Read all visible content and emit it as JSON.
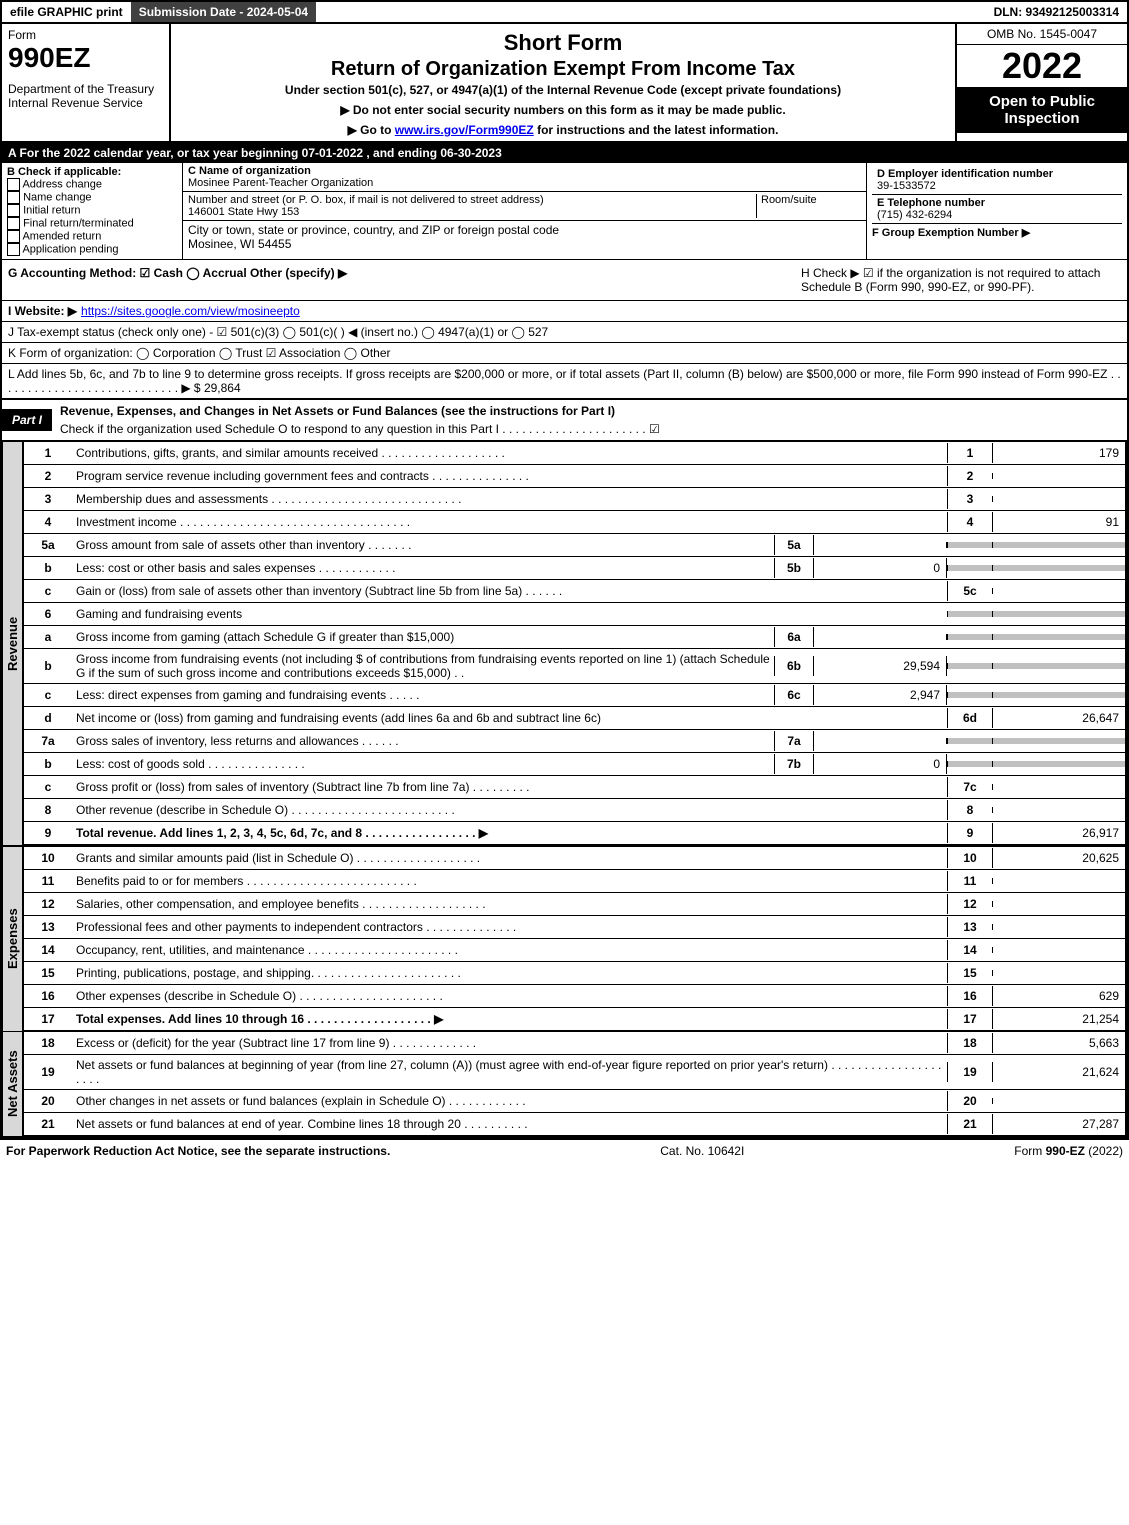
{
  "topbar": {
    "efile": "efile GRAPHIC print",
    "submission": "Submission Date - 2024-05-04",
    "dln": "DLN: 93492125003314"
  },
  "header": {
    "form_word": "Form",
    "form_num": "990EZ",
    "dept": "Department of the Treasury\nInternal Revenue Service",
    "title1": "Short Form",
    "title2": "Return of Organization Exempt From Income Tax",
    "subtitle": "Under section 501(c), 527, or 4947(a)(1) of the Internal Revenue Code (except private foundations)",
    "note1": "▶ Do not enter social security numbers on this form as it may be made public.",
    "note2_pre": "▶ Go to ",
    "note2_link": "www.irs.gov/Form990EZ",
    "note2_post": " for instructions and the latest information.",
    "omb": "OMB No. 1545-0047",
    "year": "2022",
    "open": "Open to Public Inspection"
  },
  "A": "A  For the 2022 calendar year, or tax year beginning 07-01-2022 , and ending 06-30-2023",
  "B": {
    "label": "B  Check if applicable:",
    "opts": [
      "Address change",
      "Name change",
      "Initial return",
      "Final return/terminated",
      "Amended return",
      "Application pending"
    ]
  },
  "C": {
    "label": "C Name of organization",
    "name": "Mosinee Parent-Teacher Organization",
    "street_label": "Number and street (or P. O. box, if mail is not delivered to street address)",
    "room_label": "Room/suite",
    "street": "146001 State Hwy 153",
    "city_label": "City or town, state or province, country, and ZIP or foreign postal code",
    "city": "Mosinee, WI  54455"
  },
  "D": {
    "label": "D Employer identification number",
    "val": "39-1533572"
  },
  "E": {
    "label": "E Telephone number",
    "val": "(715) 432-6294"
  },
  "F": {
    "label": "F Group Exemption Number   ▶"
  },
  "G": "G Accounting Method:   ☑ Cash   ◯ Accrual   Other (specify) ▶",
  "H": "H   Check ▶  ☑  if the organization is not required to attach Schedule B (Form 990, 990-EZ, or 990-PF).",
  "I_label": "I Website: ▶",
  "I_link": "https://sites.google.com/view/mosineepto",
  "J": "J Tax-exempt status (check only one) -  ☑ 501(c)(3)  ◯ 501(c)(  ) ◀ (insert no.)  ◯ 4947(a)(1) or  ◯ 527",
  "K": "K Form of organization:   ◯ Corporation   ◯ Trust   ☑ Association   ◯ Other",
  "L": "L Add lines 5b, 6c, and 7b to line 9 to determine gross receipts. If gross receipts are $200,000 or more, or if total assets (Part II, column (B) below) are $500,000 or more, file Form 990 instead of Form 990-EZ  .  .  .  .  .  .  .  .  .  .  .  .  .  .  .  .  .  .  .  .  .  .  .  .  .  .  .  .  ▶ $ 29,864",
  "part1": {
    "label": "Part I",
    "title": "Revenue, Expenses, and Changes in Net Assets or Fund Balances (see the instructions for Part I)",
    "check": "Check if the organization used Schedule O to respond to any question in this Part I  .  .  .  .  .  .  .  .  .  .  .  .  .  .  .  .  .  .  .  .  .  .  ☑"
  },
  "side_labels": {
    "revenue": "Revenue",
    "expenses": "Expenses",
    "netassets": "Net Assets"
  },
  "lines": {
    "1": {
      "n": "1",
      "d": "Contributions, gifts, grants, and similar amounts received  .  .  .  .  .  .  .  .  .  .  .  .  .  .  .  .  .  .  .",
      "c": "1",
      "v": "179"
    },
    "2": {
      "n": "2",
      "d": "Program service revenue including government fees and contracts  .  .  .  .  .  .  .  .  .  .  .  .  .  .  .",
      "c": "2",
      "v": ""
    },
    "3": {
      "n": "3",
      "d": "Membership dues and assessments  .  .  .  .  .  .  .  .  .  .  .  .  .  .  .  .  .  .  .  .  .  .  .  .  .  .  .  .  .",
      "c": "3",
      "v": ""
    },
    "4": {
      "n": "4",
      "d": "Investment income  .  .  .  .  .  .  .  .  .  .  .  .  .  .  .  .  .  .  .  .  .  .  .  .  .  .  .  .  .  .  .  .  .  .  .",
      "c": "4",
      "v": "91"
    },
    "5a": {
      "n": "5a",
      "d": "Gross amount from sale of assets other than inventory  .  .  .  .  .  .  .",
      "sb": "5a",
      "sv": ""
    },
    "5b": {
      "n": "b",
      "d": "Less: cost or other basis and sales expenses  .  .  .  .  .  .  .  .  .  .  .  .",
      "sb": "5b",
      "sv": "0"
    },
    "5c": {
      "n": "c",
      "d": "Gain or (loss) from sale of assets other than inventory (Subtract line 5b from line 5a)  .  .  .  .  .  .",
      "c": "5c",
      "v": ""
    },
    "6": {
      "n": "6",
      "d": "Gaming and fundraising events"
    },
    "6a": {
      "n": "a",
      "d": "Gross income from gaming (attach Schedule G if greater than $15,000)",
      "sb": "6a",
      "sv": ""
    },
    "6b": {
      "n": "b",
      "d": "Gross income from fundraising events (not including $                  of contributions from fundraising events reported on line 1) (attach Schedule G if the sum of such gross income and contributions exceeds $15,000)   .  .",
      "sb": "6b",
      "sv": "29,594"
    },
    "6c": {
      "n": "c",
      "d": "Less: direct expenses from gaming and fundraising events   .  .  .  .  .",
      "sb": "6c",
      "sv": "2,947"
    },
    "6d": {
      "n": "d",
      "d": "Net income or (loss) from gaming and fundraising events (add lines 6a and 6b and subtract line 6c)",
      "c": "6d",
      "v": "26,647"
    },
    "7a": {
      "n": "7a",
      "d": "Gross sales of inventory, less returns and allowances  .  .  .  .  .  .",
      "sb": "7a",
      "sv": ""
    },
    "7b": {
      "n": "b",
      "d": "Less: cost of goods sold      .  .  .  .  .  .  .  .  .  .  .  .  .  .  .",
      "sb": "7b",
      "sv": "0"
    },
    "7c": {
      "n": "c",
      "d": "Gross profit or (loss) from sales of inventory (Subtract line 7b from line 7a)  .  .  .  .  .  .  .  .  .",
      "c": "7c",
      "v": ""
    },
    "8": {
      "n": "8",
      "d": "Other revenue (describe in Schedule O)  .  .  .  .  .  .  .  .  .  .  .  .  .  .  .  .  .  .  .  .  .  .  .  .  .",
      "c": "8",
      "v": ""
    },
    "9": {
      "n": "9",
      "d": "Total revenue. Add lines 1, 2, 3, 4, 5c, 6d, 7c, and 8   .  .  .  .  .  .  .  .  .  .  .  .  .  .  .  .  .       ▶",
      "c": "9",
      "v": "26,917",
      "bold": true
    },
    "10": {
      "n": "10",
      "d": "Grants and similar amounts paid (list in Schedule O)  .  .  .  .  .  .  .  .  .  .  .  .  .  .  .  .  .  .  .",
      "c": "10",
      "v": "20,625"
    },
    "11": {
      "n": "11",
      "d": "Benefits paid to or for members      .  .  .  .  .  .  .  .  .  .  .  .  .  .  .  .  .  .  .  .  .  .  .  .  .  .",
      "c": "11",
      "v": ""
    },
    "12": {
      "n": "12",
      "d": "Salaries, other compensation, and employee benefits  .  .  .  .  .  .  .  .  .  .  .  .  .  .  .  .  .  .  .",
      "c": "12",
      "v": ""
    },
    "13": {
      "n": "13",
      "d": "Professional fees and other payments to independent contractors  .  .  .  .  .  .  .  .  .  .  .  .  .  .",
      "c": "13",
      "v": ""
    },
    "14": {
      "n": "14",
      "d": "Occupancy, rent, utilities, and maintenance  .  .  .  .  .  .  .  .  .  .  .  .  .  .  .  .  .  .  .  .  .  .  .",
      "c": "14",
      "v": ""
    },
    "15": {
      "n": "15",
      "d": "Printing, publications, postage, and shipping.  .  .  .  .  .  .  .  .  .  .  .  .  .  .  .  .  .  .  .  .  .  .",
      "c": "15",
      "v": ""
    },
    "16": {
      "n": "16",
      "d": "Other expenses (describe in Schedule O)      .  .  .  .  .  .  .  .  .  .  .  .  .  .  .  .  .  .  .  .  .  .",
      "c": "16",
      "v": "629"
    },
    "17": {
      "n": "17",
      "d": "Total expenses. Add lines 10 through 16      .  .  .  .  .  .  .  .  .  .  .  .  .  .  .  .  .  .  .       ▶",
      "c": "17",
      "v": "21,254",
      "bold": true
    },
    "18": {
      "n": "18",
      "d": "Excess or (deficit) for the year (Subtract line 17 from line 9)       .  .  .  .  .  .  .  .  .  .  .  .  .",
      "c": "18",
      "v": "5,663"
    },
    "19": {
      "n": "19",
      "d": "Net assets or fund balances at beginning of year (from line 27, column (A)) (must agree with end-of-year figure reported on prior year's return)  .  .  .  .  .  .  .  .  .  .  .  .  .  .  .  .  .  .  .  .  .",
      "c": "19",
      "v": "21,624"
    },
    "20": {
      "n": "20",
      "d": "Other changes in net assets or fund balances (explain in Schedule O)  .  .  .  .  .  .  .  .  .  .  .  .",
      "c": "20",
      "v": ""
    },
    "21": {
      "n": "21",
      "d": "Net assets or fund balances at end of year. Combine lines 18 through 20  .  .  .  .  .  .  .  .  .  .",
      "c": "21",
      "v": "27,287"
    }
  },
  "footer": {
    "left": "For Paperwork Reduction Act Notice, see the separate instructions.",
    "mid": "Cat. No. 10642I",
    "right": "Form 990-EZ (2022)"
  }
}
